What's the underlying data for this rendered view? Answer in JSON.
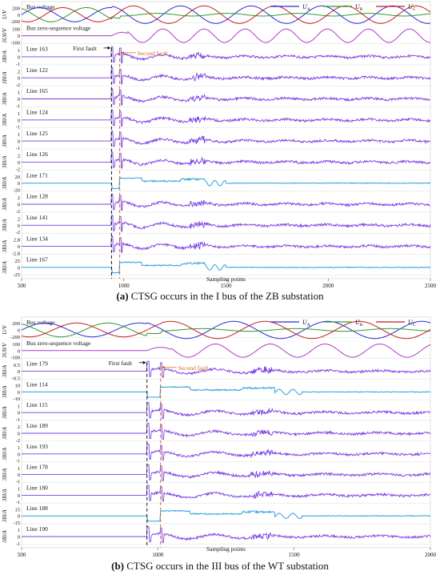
{
  "panels": [
    {
      "caption_tag": "(a)",
      "caption_text": " CTSG occurs in the I bus of the ZB substation",
      "chart_data": {
        "type": "line",
        "xlabel": "Sampling points",
        "xlim": [
          500,
          2500
        ],
        "x_ticks": [
          "500",
          "1000",
          "1500",
          "2000",
          "2500"
        ],
        "first_fault_label": "First fault",
        "second_fault_label": "Second fault",
        "first_fault_x": 940,
        "second_fault_x": 980,
        "legend": [
          {
            "label": "U",
            "sub": "A",
            "color": "#2b2bd9"
          },
          {
            "label": "U",
            "sub": "B",
            "color": "#2e9a2e"
          },
          {
            "label": "U",
            "sub": "C",
            "color": "#c81e1e"
          }
        ],
        "rows": [
          {
            "name": "Bus voltage",
            "unit": "U/V",
            "kind": "voltage",
            "ticks": [
              "200",
              "0",
              "-200"
            ]
          },
          {
            "name": "Bus zero-sequence voltage",
            "unit": "3U0/V",
            "kind": "zero",
            "ticks": [
              "100",
              "0",
              "-100"
            ]
          },
          {
            "name": "Line 163",
            "unit": "3I0/A",
            "kind": "spike",
            "ticks": [
              "1",
              "0",
              "-1"
            ]
          },
          {
            "name": "Line 122",
            "unit": "3I0/A",
            "kind": "spike",
            "ticks": [
              "2",
              "0",
              "-2"
            ]
          },
          {
            "name": "Line 165",
            "unit": "3I0/A",
            "kind": "spike",
            "ticks": [
              "1",
              "0",
              "-1"
            ]
          },
          {
            "name": "Line 124",
            "unit": "3I0/A",
            "kind": "spike",
            "ticks": [
              "1",
              "0",
              "-1"
            ]
          },
          {
            "name": "Line 125",
            "unit": "3I0/A",
            "kind": "spike",
            "ticks": [
              "1",
              "0",
              "-1"
            ]
          },
          {
            "name": "Line 126",
            "unit": "3I0/A",
            "kind": "spike",
            "ticks": [
              "2",
              "0",
              "-2"
            ]
          },
          {
            "name": "Line 171",
            "unit": "3I0/A",
            "kind": "faulted",
            "ticks": [
              "20",
              "0",
              "-20"
            ]
          },
          {
            "name": "Line 128",
            "unit": "3I0/A",
            "kind": "spike",
            "ticks": [
              "2",
              "0",
              "-2"
            ]
          },
          {
            "name": "Line 141",
            "unit": "3I0/A",
            "kind": "spike",
            "ticks": [
              "2",
              "0",
              "-2"
            ]
          },
          {
            "name": "Line 134",
            "unit": "3I0/A",
            "kind": "spike",
            "ticks": [
              "2.8",
              "0",
              "-2.8"
            ]
          },
          {
            "name": "Line 167",
            "unit": "3I0/A",
            "kind": "faulted",
            "ticks": [
              "25",
              "0",
              "-25"
            ]
          }
        ]
      }
    },
    {
      "caption_tag": "(b)",
      "caption_text": " CTSG occurs in the III bus of the WT substation",
      "chart_data": {
        "type": "line",
        "xlabel": "Sampling points",
        "xlim": [
          500,
          2000
        ],
        "x_ticks": [
          "500",
          "1000",
          "1500",
          "2000"
        ],
        "first_fault_label": "First fault",
        "second_fault_label": "Second fault",
        "first_fault_x": 960,
        "second_fault_x": 1010,
        "legend": [
          {
            "label": "U",
            "sub": "A",
            "color": "#2b2bd9"
          },
          {
            "label": "U",
            "sub": "B",
            "color": "#2e9a2e"
          },
          {
            "label": "U",
            "sub": "C",
            "color": "#c81e1e"
          }
        ],
        "rows": [
          {
            "name": "Bus voltage",
            "unit": "U/V",
            "kind": "voltage",
            "ticks": [
              "200",
              "0",
              "-200"
            ]
          },
          {
            "name": "Bus zero-sequence voltage",
            "unit": "3U0/V",
            "kind": "zero",
            "ticks": [
              "100",
              "0",
              "-100"
            ]
          },
          {
            "name": "Line 179",
            "unit": "3I0/A",
            "kind": "spike",
            "ticks": [
              "0.5",
              "0",
              "-0.5"
            ]
          },
          {
            "name": "Line 114",
            "unit": "3I0/A",
            "kind": "faulted",
            "ticks": [
              "10",
              "0",
              "-10"
            ]
          },
          {
            "name": "Line 115",
            "unit": "3I0/A",
            "kind": "spike",
            "ticks": [
              "1",
              "0",
              "-1"
            ]
          },
          {
            "name": "Line 189",
            "unit": "3I0/A",
            "kind": "spike",
            "ticks": [
              "2",
              "0",
              "-2"
            ]
          },
          {
            "name": "Line 193",
            "unit": "3I0/A",
            "kind": "spike",
            "ticks": [
              "1",
              "0",
              "-1"
            ]
          },
          {
            "name": "Line 178",
            "unit": "3I0/A",
            "kind": "spike",
            "ticks": [
              "1",
              "0",
              "-1"
            ]
          },
          {
            "name": "Line 180",
            "unit": "3I0/A",
            "kind": "spike",
            "ticks": [
              "1",
              "0",
              "-1"
            ]
          },
          {
            "name": "Line 188",
            "unit": "3I0/A",
            "kind": "faulted",
            "ticks": [
              "15",
              "0",
              "-15"
            ]
          },
          {
            "name": "Line 190",
            "unit": "3I0/A",
            "kind": "spike",
            "ticks": [
              "1",
              "0",
              "-1"
            ]
          }
        ]
      }
    }
  ]
}
